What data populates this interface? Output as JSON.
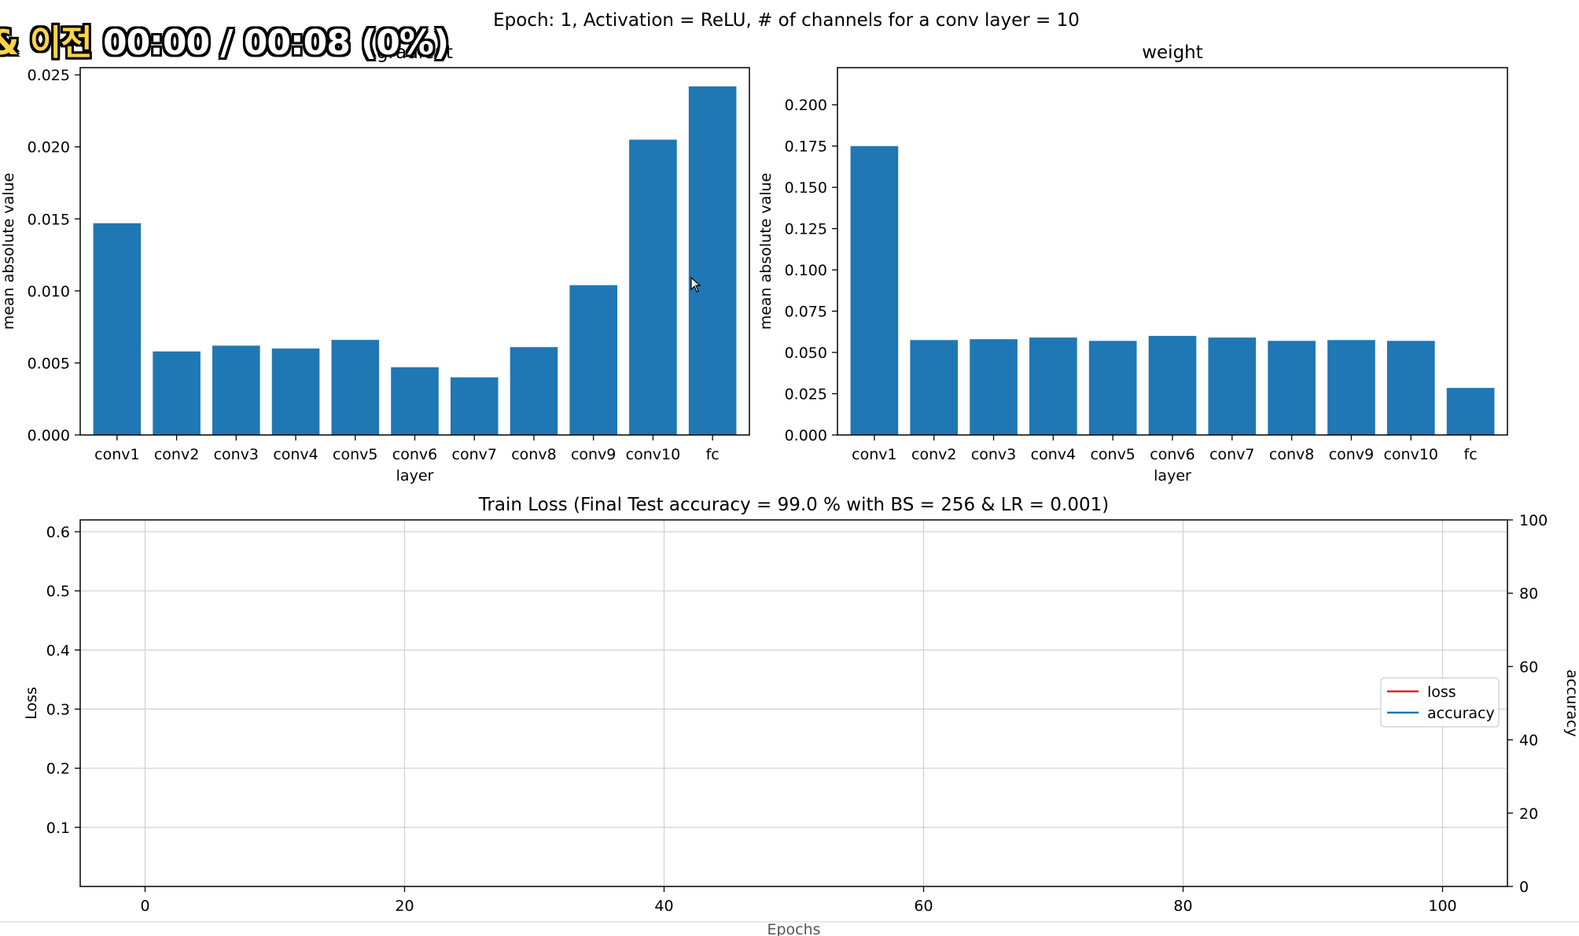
{
  "overlay": {
    "cut_char": "&",
    "prefix": "이전",
    "time": "00:00 / 00:08 (0%)"
  },
  "colors": {
    "bar": "#1f77b4",
    "loss": "#d62728",
    "accuracy": "#1f77b4",
    "grid": "#d0d0d0",
    "axis": "#000000"
  },
  "chart_data": [
    {
      "type": "bar",
      "suptitle": "Epoch: 1, Activation = ReLU, # of channels for a conv layer = 10",
      "title": "gradient",
      "xlabel": "layer",
      "ylabel": "mean absolute value",
      "categories": [
        "conv1",
        "conv2",
        "conv3",
        "conv4",
        "conv5",
        "conv6",
        "conv7",
        "conv8",
        "conv9",
        "conv10",
        "fc"
      ],
      "values": [
        0.0147,
        0.0058,
        0.0062,
        0.006,
        0.0066,
        0.0047,
        0.004,
        0.0061,
        0.0104,
        0.0205,
        0.0242
      ],
      "ylim": [
        0,
        0.0255
      ],
      "yticks": [
        "0.000",
        "0.005",
        "0.010",
        "0.015",
        "0.020",
        "0.025"
      ],
      "ytick_values": [
        0,
        0.005,
        0.01,
        0.015,
        0.02,
        0.025
      ]
    },
    {
      "type": "bar",
      "title": "weight",
      "xlabel": "layer",
      "ylabel": "mean absolute value",
      "categories": [
        "conv1",
        "conv2",
        "conv3",
        "conv4",
        "conv5",
        "conv6",
        "conv7",
        "conv8",
        "conv9",
        "conv10",
        "fc"
      ],
      "values": [
        0.175,
        0.0575,
        0.058,
        0.059,
        0.057,
        0.06,
        0.059,
        0.057,
        0.0575,
        0.057,
        0.0285
      ],
      "ylim": [
        0,
        0.2225
      ],
      "yticks": [
        "0.000",
        "0.025",
        "0.050",
        "0.075",
        "0.100",
        "0.125",
        "0.150",
        "0.175",
        "0.200"
      ],
      "ytick_values": [
        0,
        0.025,
        0.05,
        0.075,
        0.1,
        0.125,
        0.15,
        0.175,
        0.2
      ]
    },
    {
      "type": "line",
      "title": "Train Loss (Final Test accuracy = 99.0 % with BS = 256 & LR = 0.001)",
      "xlabel": "Epochs",
      "ylabel": "Loss",
      "y2label": "accuracy",
      "xlim": [
        -5,
        105
      ],
      "ylim": [
        0,
        0.62
      ],
      "y2lim": [
        0,
        100
      ],
      "xticks": [
        0,
        20,
        40,
        60,
        80,
        100
      ],
      "xtick_labels": [
        "0",
        "20",
        "40",
        "60",
        "80",
        "100"
      ],
      "yticks": [
        0.1,
        0.2,
        0.3,
        0.4,
        0.5,
        0.6
      ],
      "ytick_labels": [
        "0.1",
        "0.2",
        "0.3",
        "0.4",
        "0.5",
        "0.6"
      ],
      "y2ticks": [
        0,
        20,
        40,
        60,
        80,
        100
      ],
      "y2tick_labels": [
        "0",
        "20",
        "40",
        "60",
        "80",
        "100"
      ],
      "grid": true,
      "legend_position": "center-right",
      "series": [
        {
          "name": "loss",
          "x": [],
          "y": []
        },
        {
          "name": "accuracy",
          "x": [],
          "y": []
        }
      ]
    }
  ]
}
